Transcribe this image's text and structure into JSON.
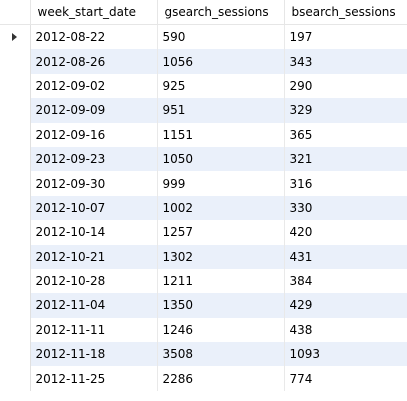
{
  "columns": [
    "week_start_date",
    "gsearch_sessions",
    "bsearch_sessions"
  ],
  "rows": [
    [
      "2012-08-22",
      "590",
      "197"
    ],
    [
      "2012-08-26",
      "1056",
      "343"
    ],
    [
      "2012-09-02",
      "925",
      "290"
    ],
    [
      "2012-09-09",
      "951",
      "329"
    ],
    [
      "2012-09-16",
      "1151",
      "365"
    ],
    [
      "2012-09-23",
      "1050",
      "321"
    ],
    [
      "2012-09-30",
      "999",
      "316"
    ],
    [
      "2012-10-07",
      "1002",
      "330"
    ],
    [
      "2012-10-14",
      "1257",
      "420"
    ],
    [
      "2012-10-21",
      "1302",
      "431"
    ],
    [
      "2012-10-28",
      "1211",
      "384"
    ],
    [
      "2012-11-04",
      "1350",
      "429"
    ],
    [
      "2012-11-11",
      "1246",
      "438"
    ],
    [
      "2012-11-18",
      "3508",
      "1093"
    ],
    [
      "2012-11-25",
      "2286",
      "774"
    ]
  ],
  "current_row_index": 0,
  "colors": {
    "stripe": "#eaf0fa",
    "grid_line": "#e6e6e6"
  }
}
